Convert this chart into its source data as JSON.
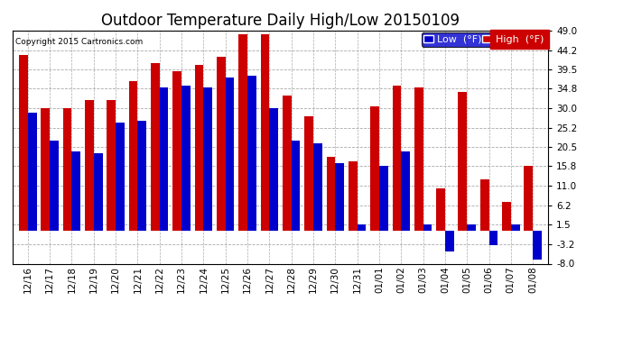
{
  "title": "Outdoor Temperature Daily High/Low 20150109",
  "copyright": "Copyright 2015 Cartronics.com",
  "legend_low": "Low  (°F)",
  "legend_high": "High  (°F)",
  "dates": [
    "12/16",
    "12/17",
    "12/18",
    "12/19",
    "12/20",
    "12/21",
    "12/22",
    "12/23",
    "12/24",
    "12/25",
    "12/26",
    "12/27",
    "12/28",
    "12/29",
    "12/30",
    "12/31",
    "01/01",
    "01/02",
    "01/03",
    "01/04",
    "01/05",
    "01/06",
    "01/07",
    "01/08"
  ],
  "highs": [
    43.0,
    30.0,
    30.0,
    32.0,
    32.0,
    36.5,
    41.0,
    39.0,
    40.5,
    42.5,
    48.0,
    48.0,
    33.0,
    28.0,
    18.0,
    17.0,
    30.5,
    35.5,
    35.0,
    10.5,
    34.0,
    12.5,
    7.0,
    16.0
  ],
  "lows": [
    29.0,
    22.0,
    19.5,
    19.0,
    26.5,
    27.0,
    35.0,
    35.5,
    35.0,
    37.5,
    38.0,
    30.0,
    22.0,
    21.5,
    16.5,
    1.5,
    16.0,
    19.5,
    1.5,
    -5.0,
    1.5,
    -3.5,
    1.5,
    -7.0
  ],
  "ylim": [
    -8.0,
    49.0
  ],
  "yticks": [
    49.0,
    44.2,
    39.5,
    34.8,
    30.0,
    25.2,
    20.5,
    15.8,
    11.0,
    6.2,
    1.5,
    -3.2,
    -8.0
  ],
  "bar_width": 0.4,
  "low_color": "#0000cc",
  "high_color": "#cc0000",
  "bg_color": "#ffffff",
  "grid_color": "#aaaaaa",
  "title_fontsize": 12,
  "tick_fontsize": 7.5,
  "legend_fontsize": 8
}
